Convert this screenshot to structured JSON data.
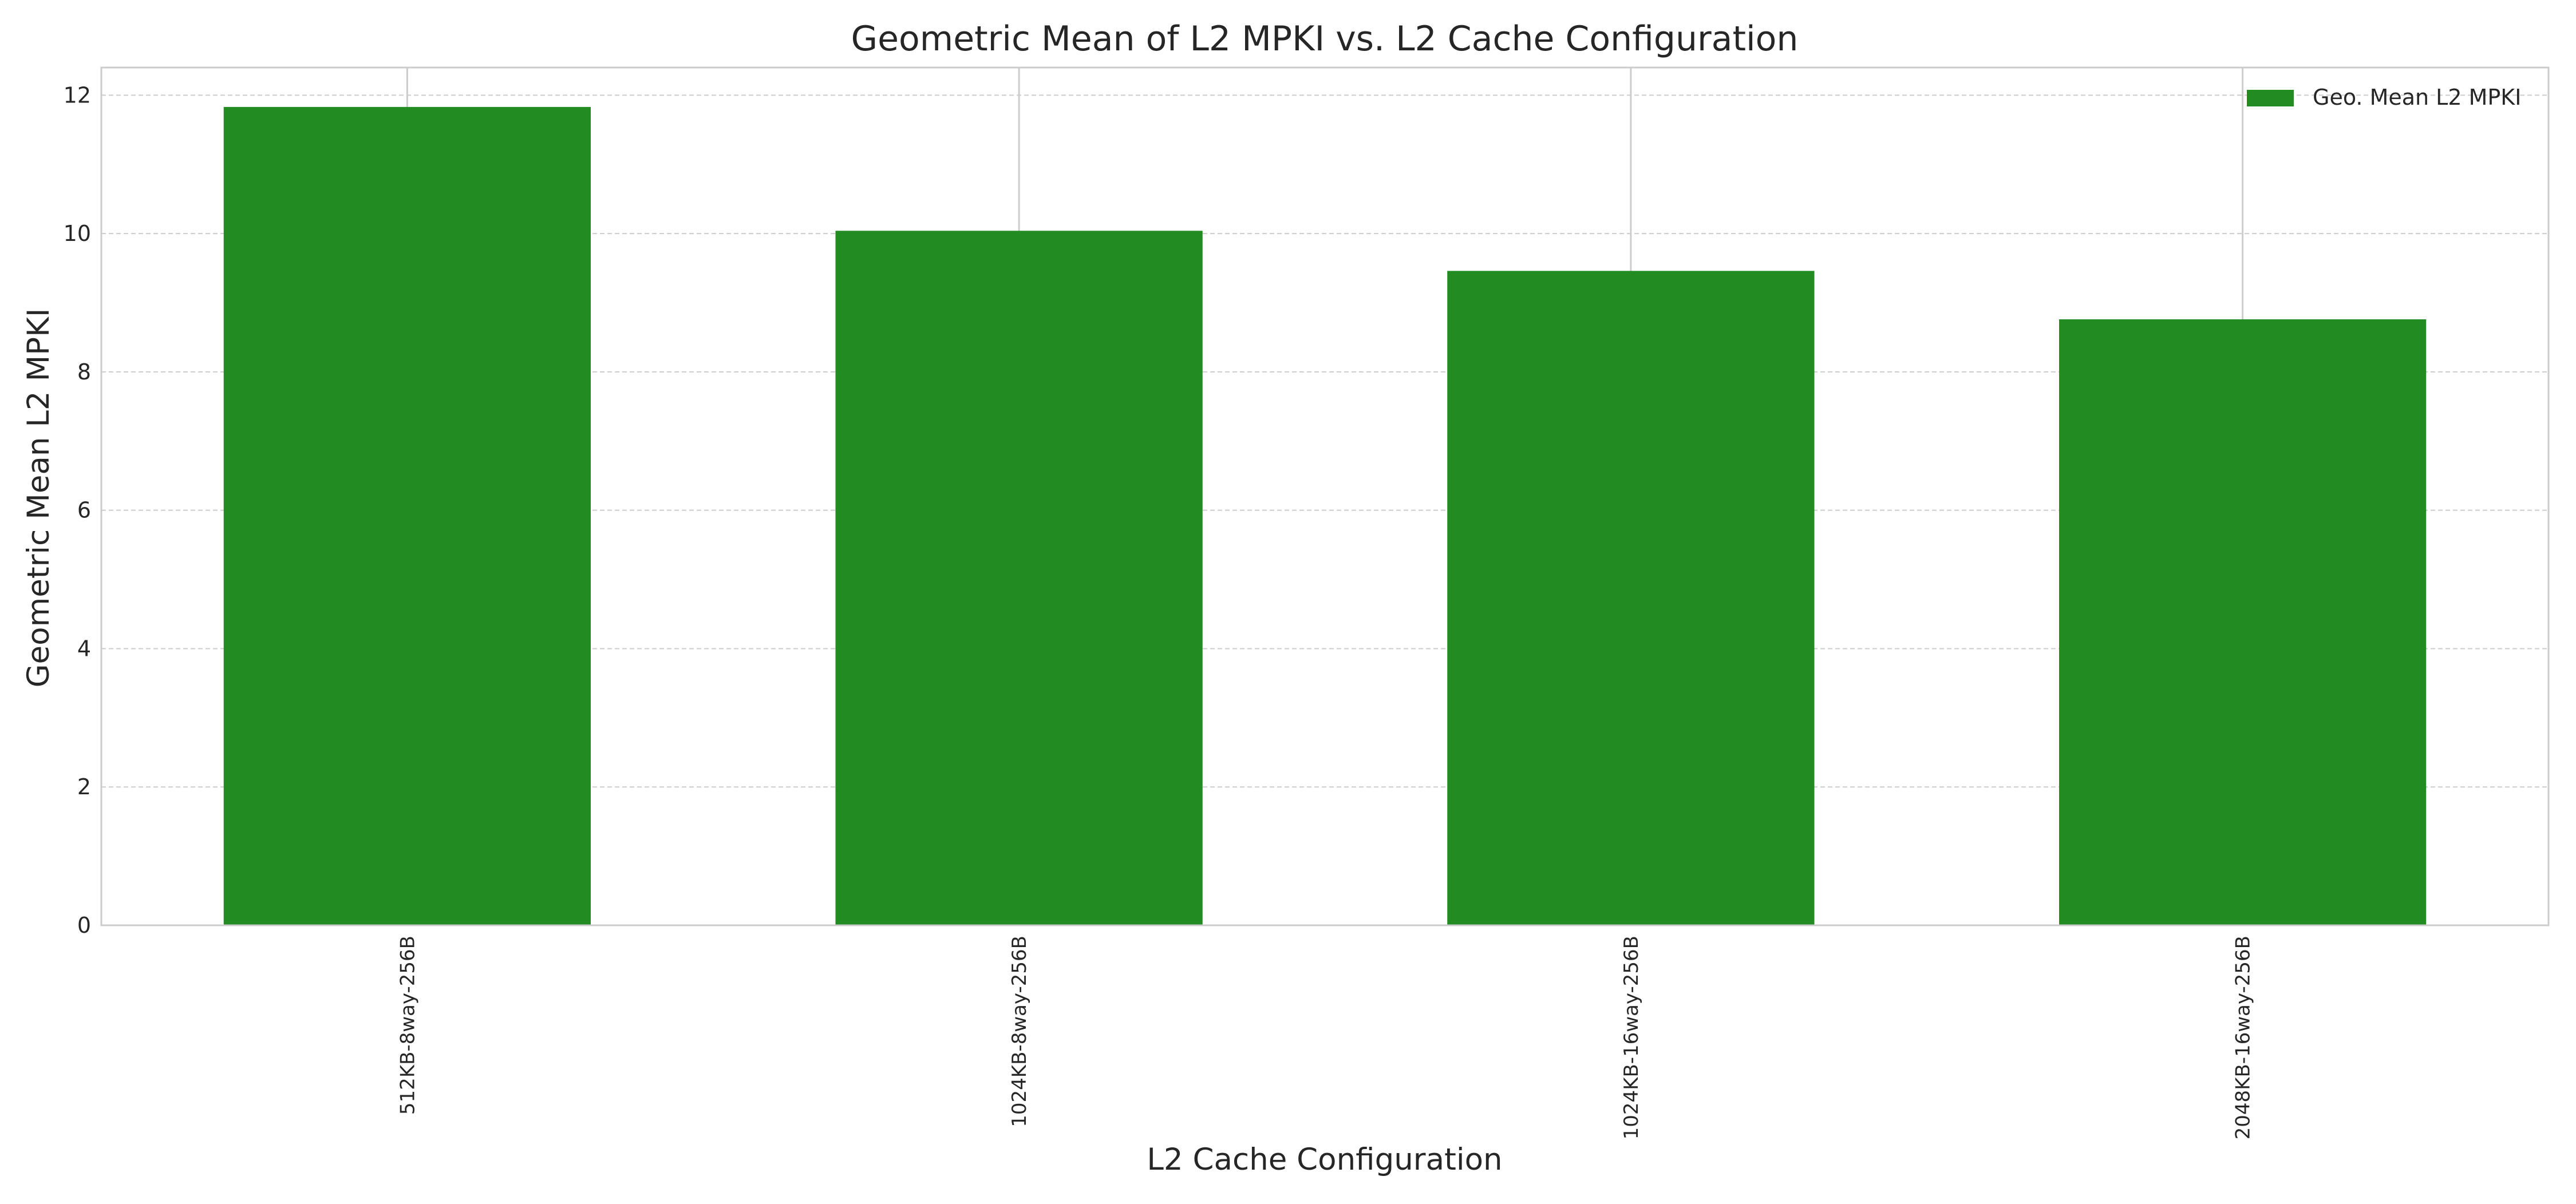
{
  "chart_data": {
    "type": "bar",
    "title": "Geometric Mean of L2 MPKI vs. L2 Cache Configuration",
    "xlabel": "L2 Cache Configuration",
    "ylabel": "Geometric Mean L2 MPKI",
    "categories": [
      "512KB-8way-256B",
      "1024KB-8way-256B",
      "1024KB-16way-256B",
      "2048KB-16way-256B"
    ],
    "series": [
      {
        "name": "Geo. Mean L2 MPKI",
        "color": "#228b22",
        "values": [
          11.83,
          10.04,
          9.46,
          8.76
        ]
      }
    ],
    "ylim": [
      0,
      12.4
    ],
    "yticks": [
      0,
      2,
      4,
      6,
      8,
      10,
      12
    ],
    "grid": true,
    "legend_position": "top-right"
  }
}
